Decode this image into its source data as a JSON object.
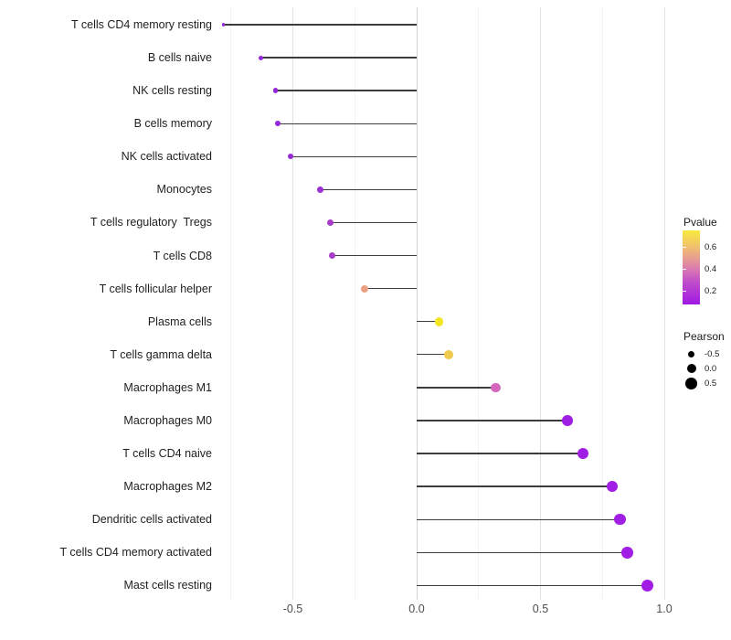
{
  "chart_data": {
    "type": "scatter",
    "subtype": "lollipop",
    "title": "",
    "xlabel": "",
    "ylabel": "",
    "x_tick_labels": [
      "-0.5",
      "0.0",
      "0.5",
      "1.0"
    ],
    "x_tick_values": [
      -0.5,
      0.0,
      0.5,
      1.0
    ],
    "x_minor_gridlines": [
      -0.75,
      -0.25,
      0.25,
      0.75
    ],
    "xlim": [
      -0.87,
      1.03
    ],
    "grid": "major-and-minor-vertical",
    "stem_color": "#3c3c3c",
    "background": "#ffffff",
    "points": [
      {
        "label": "T cells CD4 memory resting",
        "pearson": -0.78,
        "pvalue_est": 0.06,
        "color": "#952bd9"
      },
      {
        "label": "B cells naive",
        "pearson": -0.63,
        "pvalue_est": 0.07,
        "color": "#9428d8"
      },
      {
        "label": "NK cells resting",
        "pearson": -0.57,
        "pvalue_est": 0.07,
        "color": "#9428d7"
      },
      {
        "label": "B cells memory",
        "pearson": -0.56,
        "pvalue_est": 0.07,
        "color": "#9529d7"
      },
      {
        "label": "NK cells activated",
        "pearson": -0.51,
        "pvalue_est": 0.08,
        "color": "#962ad6"
      },
      {
        "label": "Monocytes",
        "pearson": -0.39,
        "pvalue_est": 0.1,
        "color": "#9b30d3"
      },
      {
        "label": "T cells regulatory  Tregs",
        "pearson": -0.35,
        "pvalue_est": 0.14,
        "color": "#a73ccb"
      },
      {
        "label": "T cells CD8",
        "pearson": -0.34,
        "pvalue_est": 0.15,
        "color": "#a83eca"
      },
      {
        "label": "T cells follicular helper",
        "pearson": -0.21,
        "pvalue_est": 0.45,
        "color": "#eca185"
      },
      {
        "label": "Plasma cells",
        "pearson": 0.09,
        "pvalue_est": 0.72,
        "color": "#f2e722"
      },
      {
        "label": "T cells gamma delta",
        "pearson": 0.13,
        "pvalue_est": 0.63,
        "color": "#efcc4e"
      },
      {
        "label": "Macrophages M1",
        "pearson": 0.32,
        "pvalue_est": 0.31,
        "color": "#d466be"
      },
      {
        "label": "Macrophages M0",
        "pearson": 0.61,
        "pvalue_est": 0.03,
        "color": "#a01ee4"
      },
      {
        "label": "T cells CD4 naive",
        "pearson": 0.67,
        "pvalue_est": 0.03,
        "color": "#a01ee4"
      },
      {
        "label": "Macrophages M2",
        "pearson": 0.79,
        "pvalue_est": 0.02,
        "color": "#a11ee4"
      },
      {
        "label": "Dendritic cells activated",
        "pearson": 0.82,
        "pvalue_est": 0.02,
        "color": "#a11ee4"
      },
      {
        "label": "T cells CD4 memory activated",
        "pearson": 0.85,
        "pvalue_est": 0.02,
        "color": "#a11ee4"
      },
      {
        "label": "Mast cells resting",
        "pearson": 0.93,
        "pvalue_est": 0.02,
        "color": "#a21ce6"
      }
    ],
    "legend": {
      "pvalue": {
        "title": "Pvalue",
        "tick_labels": [
          "0.6",
          "0.4",
          "0.2"
        ],
        "tick_values": [
          0.6,
          0.4,
          0.2
        ],
        "range": [
          0.05,
          0.74
        ],
        "gradient_bottom_to_top": [
          "#a018e4",
          "#c04cca",
          "#dc7fae",
          "#ebaa83",
          "#f3cc5f",
          "#f8e93e"
        ],
        "position": "right"
      },
      "pearson": {
        "title": "Pearson",
        "items": [
          {
            "label": "-0.5",
            "value": -0.5
          },
          {
            "label": "0.0",
            "value": 0.0
          },
          {
            "label": "0.5",
            "value": 0.5
          }
        ],
        "swatch_color": "#000000",
        "position": "right"
      }
    }
  }
}
